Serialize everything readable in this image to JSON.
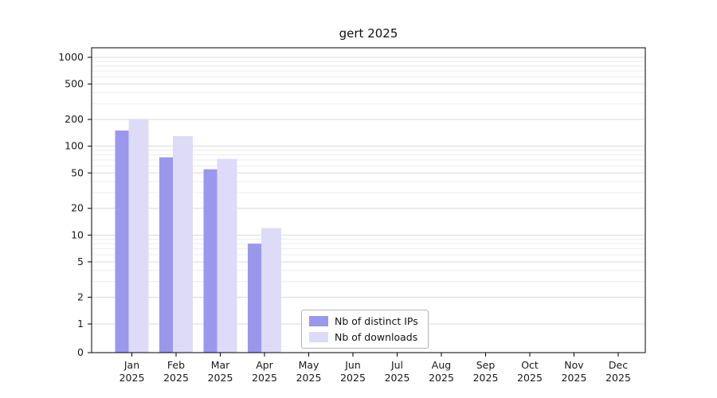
{
  "chart_data": {
    "type": "bar",
    "title": "gert 2025",
    "categories": [
      "Jan 2025",
      "Feb 2025",
      "Mar 2025",
      "Apr 2025",
      "May 2025",
      "Jun 2025",
      "Jul 2025",
      "Aug 2025",
      "Sep 2025",
      "Oct 2025",
      "Nov 2025",
      "Dec 2025"
    ],
    "series": [
      {
        "name": "Nb of distinct IPs",
        "color": "#9a97ed",
        "values": [
          150,
          75,
          55,
          8,
          0,
          0,
          0,
          0,
          0,
          0,
          0,
          0
        ]
      },
      {
        "name": "Nb of downloads",
        "color": "#dddbf8",
        "values": [
          200,
          130,
          72,
          12,
          0,
          0,
          0,
          0,
          0,
          0,
          0,
          0
        ]
      }
    ],
    "yscale": "symlog",
    "ylim": [
      0,
      1000
    ],
    "yticks": [
      0,
      1,
      2,
      5,
      10,
      20,
      50,
      100,
      200,
      500,
      1000
    ],
    "grid": true,
    "legend_position": "bottom-center",
    "colors": {
      "axis": "#000000",
      "tick_label": "#191919",
      "grid_major": "#d9d9d9",
      "grid_minor": "#ececec",
      "background": "#ffffff"
    }
  }
}
